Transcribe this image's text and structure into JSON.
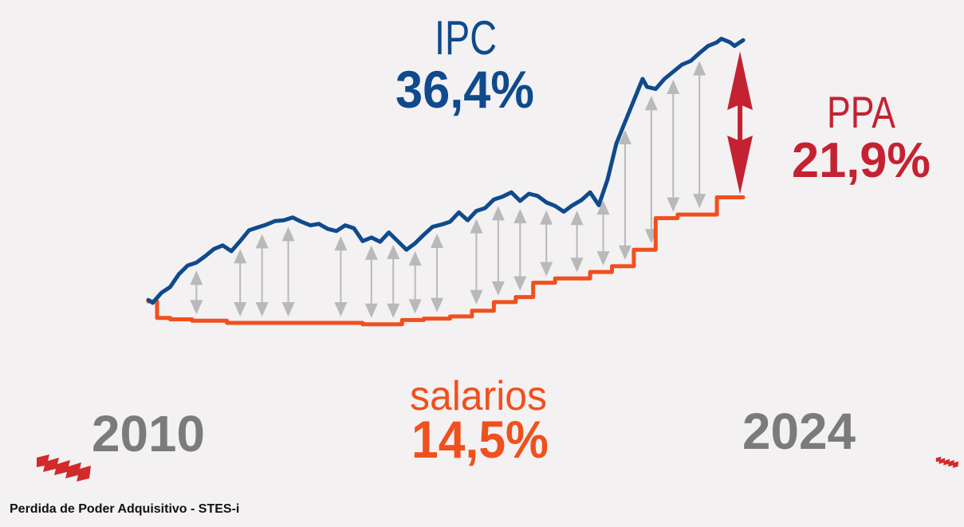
{
  "caption": "Perdida de Poder Adquisitivo - STES-i",
  "colors": {
    "ipc": "#0f4a8c",
    "salarios": "#f0501e",
    "ppa": "#c42232",
    "year": "#7b7b7b",
    "arrow": "#b9b9b9",
    "logo": "#d22a2a"
  },
  "labels": {
    "ipc_name": "IPC",
    "ipc_value": "36,4%",
    "salarios_name": "salarios",
    "salarios_value": "14,5%",
    "ppa_name": "PPA",
    "ppa_value": "21,9%",
    "year_start": "2010",
    "year_end": "2024"
  },
  "chart_data": {
    "type": "line",
    "x_range": [
      2010,
      2024
    ],
    "y_range": [
      -3,
      38
    ],
    "grid": false,
    "legend": "none",
    "series": [
      {
        "name": "IPC",
        "points": [
          [
            2010.0,
            0.2
          ],
          [
            2010.1,
            -0.2
          ],
          [
            2010.3,
            1.2
          ],
          [
            2010.5,
            2.0
          ],
          [
            2010.7,
            3.8
          ],
          [
            2010.9,
            5.0
          ],
          [
            2011.1,
            5.4
          ],
          [
            2011.3,
            6.3
          ],
          [
            2011.5,
            7.3
          ],
          [
            2011.7,
            7.8
          ],
          [
            2011.9,
            7.0
          ],
          [
            2012.1,
            8.4
          ],
          [
            2012.3,
            9.9
          ],
          [
            2012.5,
            10.3
          ],
          [
            2012.7,
            10.7
          ],
          [
            2012.9,
            11.2
          ],
          [
            2013.1,
            11.3
          ],
          [
            2013.3,
            11.7
          ],
          [
            2013.5,
            11.1
          ],
          [
            2013.7,
            10.6
          ],
          [
            2013.9,
            10.8
          ],
          [
            2014.1,
            10.1
          ],
          [
            2014.3,
            9.8
          ],
          [
            2014.5,
            10.6
          ],
          [
            2014.7,
            10.2
          ],
          [
            2014.9,
            8.4
          ],
          [
            2015.1,
            8.9
          ],
          [
            2015.3,
            8.3
          ],
          [
            2015.5,
            9.6
          ],
          [
            2015.7,
            8.4
          ],
          [
            2015.9,
            7.2
          ],
          [
            2016.1,
            8.1
          ],
          [
            2016.3,
            9.3
          ],
          [
            2016.5,
            10.4
          ],
          [
            2016.7,
            10.7
          ],
          [
            2016.9,
            11.1
          ],
          [
            2017.1,
            12.4
          ],
          [
            2017.3,
            11.3
          ],
          [
            2017.5,
            12.6
          ],
          [
            2017.7,
            13.0
          ],
          [
            2017.9,
            14.2
          ],
          [
            2018.1,
            14.6
          ],
          [
            2018.3,
            15.2
          ],
          [
            2018.5,
            14.0
          ],
          [
            2018.7,
            15.0
          ],
          [
            2018.9,
            14.7
          ],
          [
            2019.1,
            13.8
          ],
          [
            2019.3,
            13.3
          ],
          [
            2019.5,
            12.5
          ],
          [
            2019.7,
            13.4
          ],
          [
            2019.9,
            14.1
          ],
          [
            2020.1,
            15.2
          ],
          [
            2020.3,
            13.4
          ],
          [
            2020.5,
            17.0
          ],
          [
            2020.7,
            22.0
          ],
          [
            2020.9,
            25.0
          ],
          [
            2021.1,
            28.0
          ],
          [
            2021.3,
            31.0
          ],
          [
            2021.4,
            29.9
          ],
          [
            2021.6,
            29.6
          ],
          [
            2021.8,
            31.0
          ],
          [
            2022.0,
            32.0
          ],
          [
            2022.2,
            33.0
          ],
          [
            2022.4,
            33.5
          ],
          [
            2022.6,
            34.6
          ],
          [
            2022.8,
            35.6
          ],
          [
            2023.0,
            36.1
          ],
          [
            2023.1,
            36.6
          ],
          [
            2023.3,
            36.1
          ],
          [
            2023.4,
            35.6
          ],
          [
            2023.6,
            36.4
          ]
        ]
      },
      {
        "name": "salarios",
        "points": [
          [
            2010.0,
            0.0
          ],
          [
            2010.2,
            0.0
          ],
          [
            2010.2,
            -2.3
          ],
          [
            2010.5,
            -2.3
          ],
          [
            2010.5,
            -2.5
          ],
          [
            2011.0,
            -2.5
          ],
          [
            2011.0,
            -2.7
          ],
          [
            2011.8,
            -2.7
          ],
          [
            2011.8,
            -3.0
          ],
          [
            2014.9,
            -3.0
          ],
          [
            2014.9,
            -3.2
          ],
          [
            2015.8,
            -3.2
          ],
          [
            2015.8,
            -2.6
          ],
          [
            2016.3,
            -2.6
          ],
          [
            2016.3,
            -2.4
          ],
          [
            2016.9,
            -2.4
          ],
          [
            2016.9,
            -2.1
          ],
          [
            2017.4,
            -2.1
          ],
          [
            2017.4,
            -1.3
          ],
          [
            2017.9,
            -1.3
          ],
          [
            2017.9,
            -0.1
          ],
          [
            2018.4,
            -0.1
          ],
          [
            2018.4,
            0.6
          ],
          [
            2018.8,
            0.6
          ],
          [
            2018.8,
            2.6
          ],
          [
            2019.3,
            2.6
          ],
          [
            2019.3,
            3.2
          ],
          [
            2020.1,
            3.2
          ],
          [
            2020.1,
            4.1
          ],
          [
            2020.6,
            4.1
          ],
          [
            2020.6,
            4.9
          ],
          [
            2021.1,
            4.9
          ],
          [
            2021.1,
            7.2
          ],
          [
            2021.6,
            7.2
          ],
          [
            2021.6,
            11.6
          ],
          [
            2022.1,
            11.6
          ],
          [
            2022.1,
            12.1
          ],
          [
            2023.0,
            12.1
          ],
          [
            2023.0,
            14.5
          ],
          [
            2023.6,
            14.5
          ]
        ]
      }
    ],
    "gap_arrows": [
      2010.6,
      2011.1,
      2012.1,
      2012.6,
      2013.2,
      2014.4,
      2015.1,
      2015.6,
      2016.1,
      2016.6,
      2017.5,
      2018.0,
      2018.5,
      2019.1,
      2019.8,
      2020.4,
      2020.9,
      2021.5,
      2022.0,
      2022.6
    ]
  }
}
